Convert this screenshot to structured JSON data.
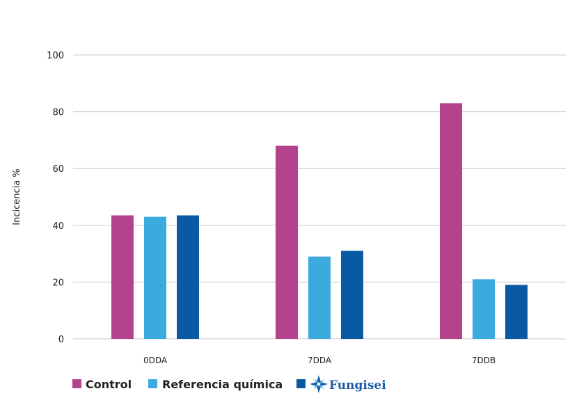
{
  "chart_data": {
    "type": "bar",
    "categories": [
      "0DDA",
      "7DDA",
      "7DDB"
    ],
    "series": [
      {
        "name": "Control",
        "values": [
          43.5,
          68,
          83
        ],
        "color": "#b5428d"
      },
      {
        "name": "Referencia química",
        "values": [
          43,
          29,
          21
        ],
        "color": "#3daadd"
      },
      {
        "name": "Fungisei",
        "values": [
          43.5,
          31,
          19
        ],
        "color": "#0a5aa3"
      }
    ],
    "yticks": [
      0,
      20,
      40,
      60,
      80,
      100
    ],
    "ylim": [
      0,
      100
    ],
    "ylabel": "Incicencia %",
    "xlabel": "",
    "title": "",
    "grid": true,
    "legend": {
      "position": "bottom-left",
      "items": [
        {
          "label": "Control",
          "color": "#b5428d"
        },
        {
          "label": "Referencia química",
          "color": "#3daadd"
        },
        {
          "label": "Fungisei",
          "color": "#0a5aa3",
          "icon": "star-logo-icon",
          "is_logo": true
        }
      ]
    }
  }
}
